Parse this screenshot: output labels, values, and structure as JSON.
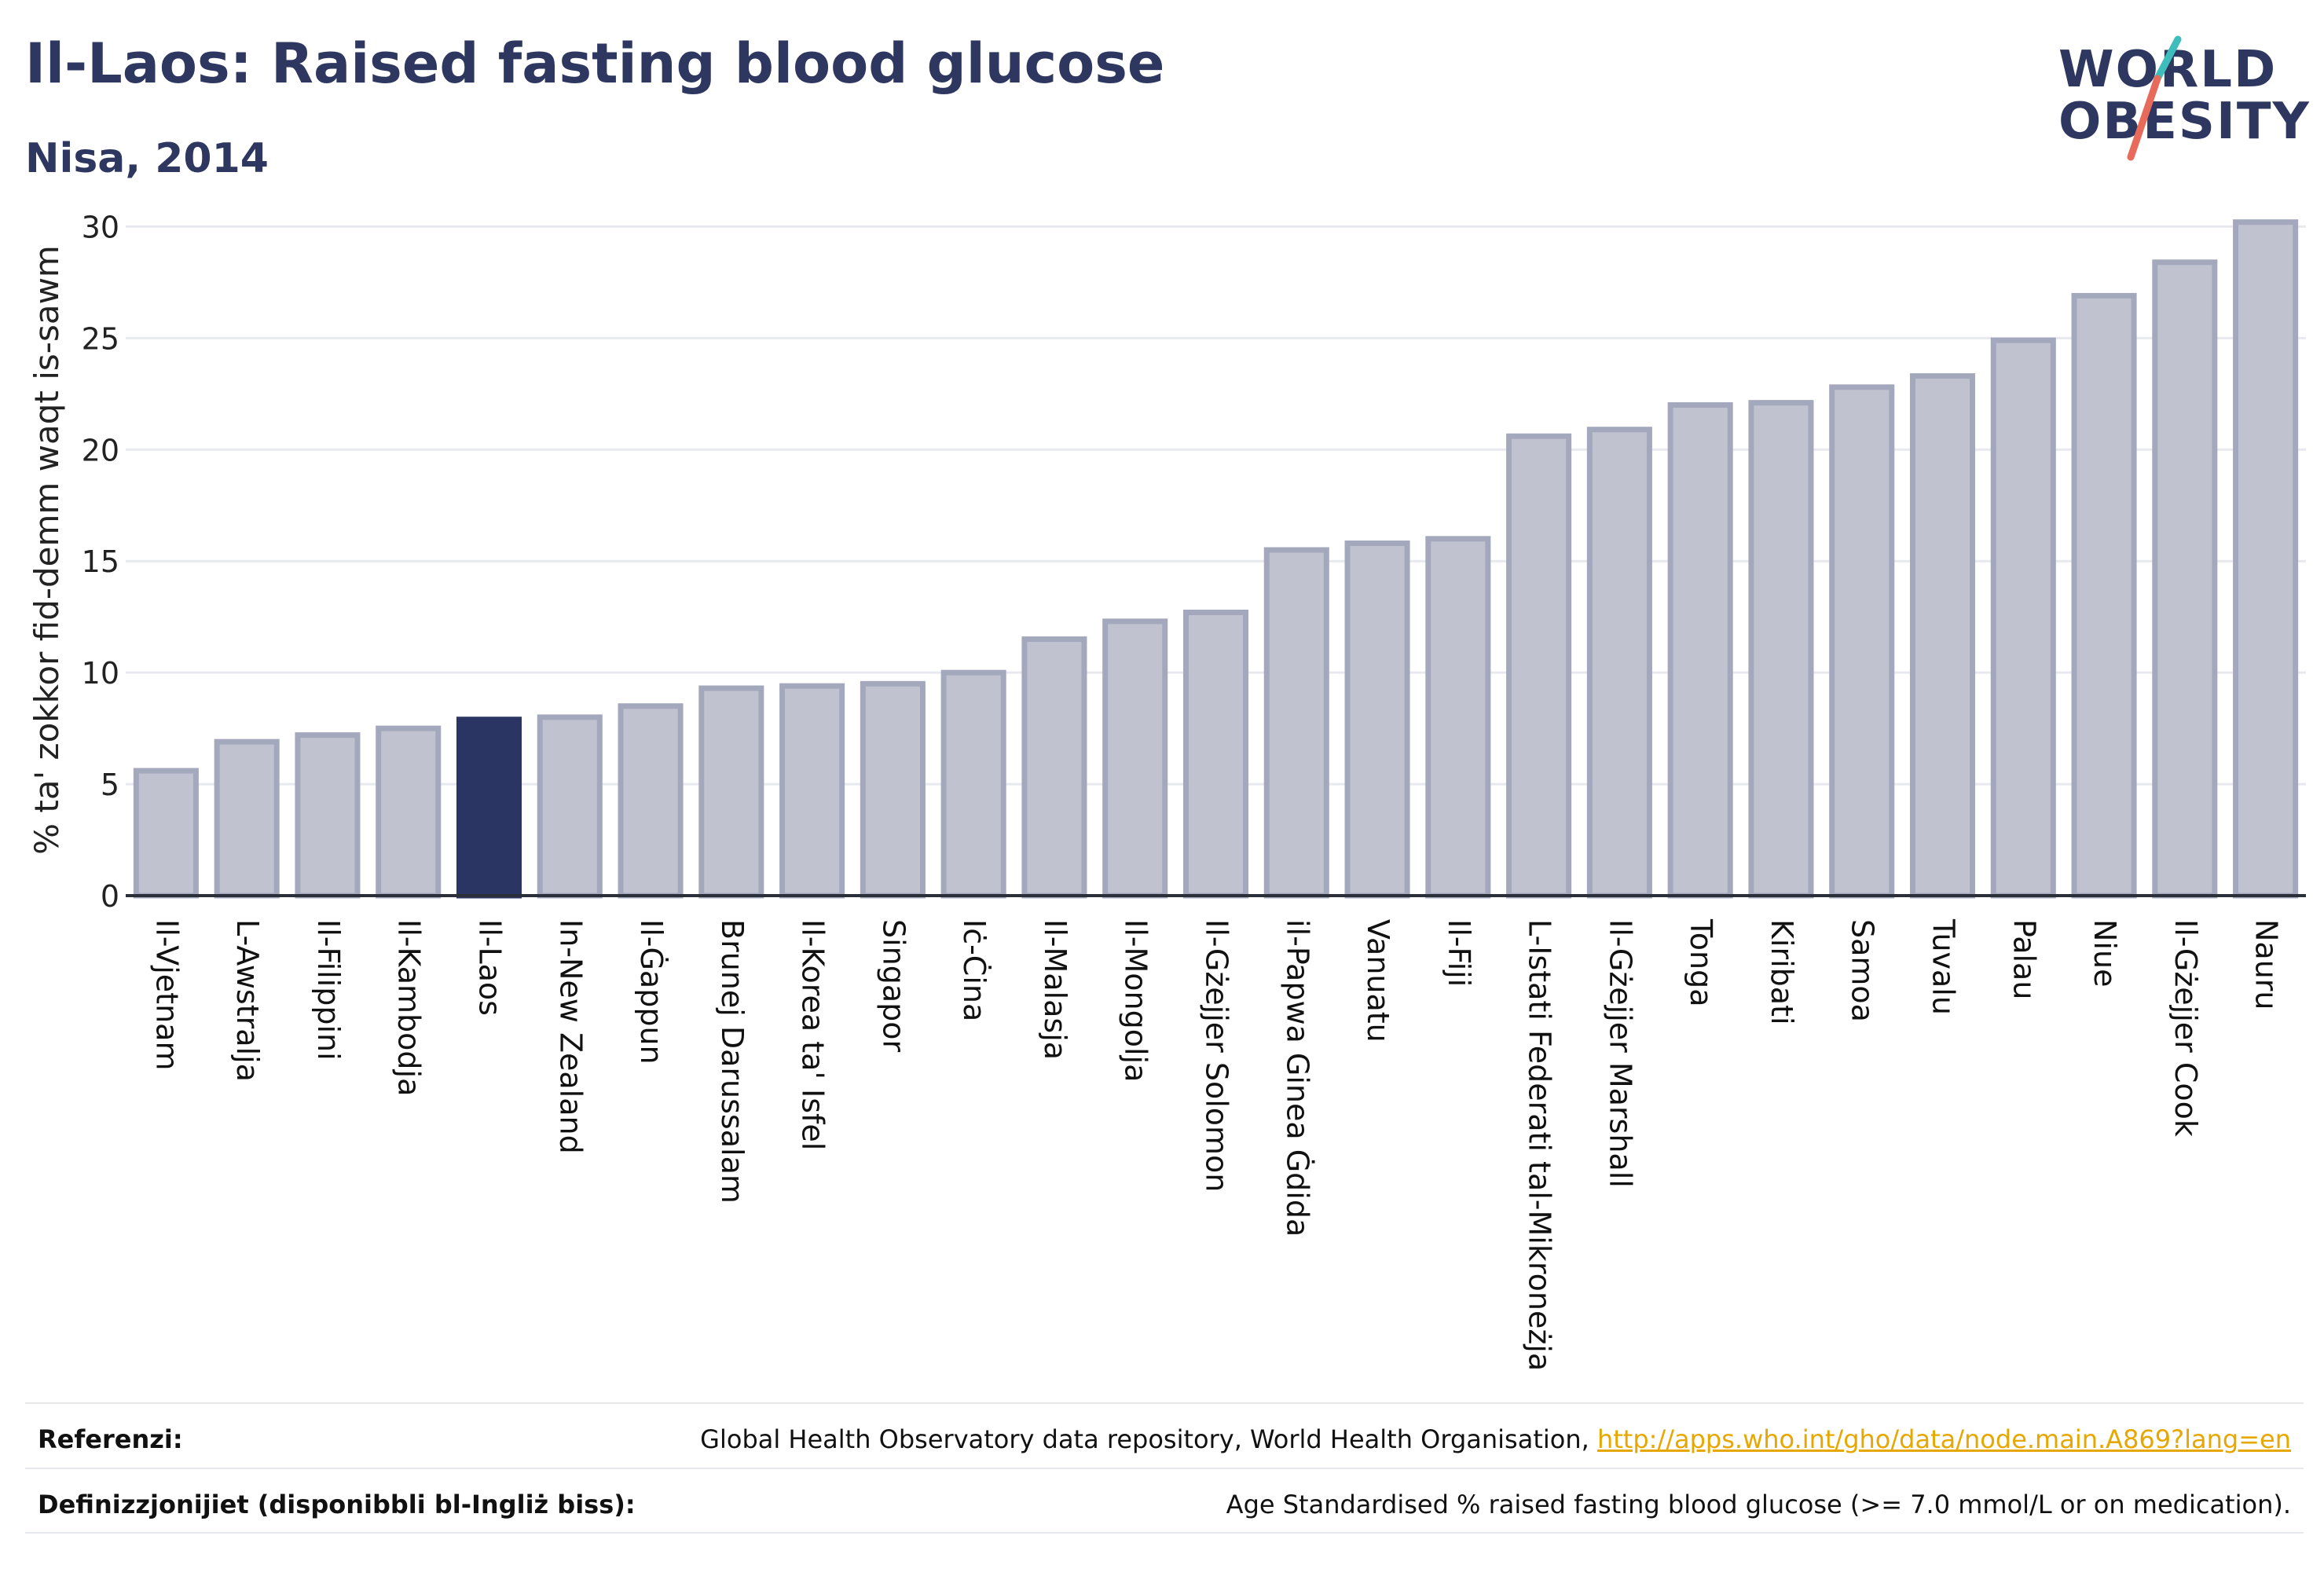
{
  "header": {
    "title": "Il-Laos: Raised fasting blood glucose",
    "subtitle": "Nisa, 2014",
    "logo_line1": "WORLD",
    "logo_line2": "OBESITY"
  },
  "chart_data": {
    "type": "bar",
    "ylabel": "% ta' zokkor fid-demm waqt is-sawm",
    "xlabel": "",
    "ylim": [
      0,
      31
    ],
    "yticks": [
      0,
      5,
      10,
      15,
      20,
      25,
      30
    ],
    "grid": true,
    "highlight": "Il-Laos",
    "colors": {
      "bar": "#c0c3cf",
      "bar_border": "#a4a8bc",
      "highlight": "#2b3563",
      "grid": "#e8e9ee",
      "axis": "#2b2f3a"
    },
    "categories": [
      "Il-Vjetnam",
      "L-Awstralja",
      "Il-Filippini",
      "Il-Kambodja",
      "Il-Laos",
      "In-New Zealand",
      "Il-Ġappun",
      "Brunej Darussalam",
      "Il-Korea ta' Isfel",
      "Singapor",
      "Iċ-Ċina",
      "Il-Malasja",
      "Il-Mongolja",
      "Il-Gżejjer Solomon",
      "il-Papwa Ginea Ġdida",
      "Vanuatu",
      "Il-Fiji",
      "L-Istati Federati tal-Mikroneżja",
      "Il-Gżejjer Marshall",
      "Tonga",
      "Kiribati",
      "Samoa",
      "Tuvalu",
      "Palau",
      "Niue",
      "Il-Gżejjer Cook",
      "Nauru"
    ],
    "values": [
      5.6,
      6.9,
      7.2,
      7.5,
      7.9,
      8.0,
      8.5,
      9.3,
      9.4,
      9.5,
      10.0,
      11.5,
      12.3,
      12.7,
      15.5,
      15.8,
      16.0,
      20.6,
      20.9,
      22.0,
      22.1,
      22.8,
      23.3,
      24.9,
      26.9,
      28.4,
      30.2
    ]
  },
  "footer": {
    "references_label": "Referenzi:",
    "references_text": "Global Health Observatory data repository, World Health Organisation, ",
    "references_link": "http://apps.who.int/gho/data/node.main.A869?lang=en",
    "definitions_label": "Definizzjonijiet (disponibbli bl-Ingliż biss):",
    "definitions_text": "Age Standardised % raised fasting blood glucose (>= 7.0 mmol/L or on medication)."
  }
}
